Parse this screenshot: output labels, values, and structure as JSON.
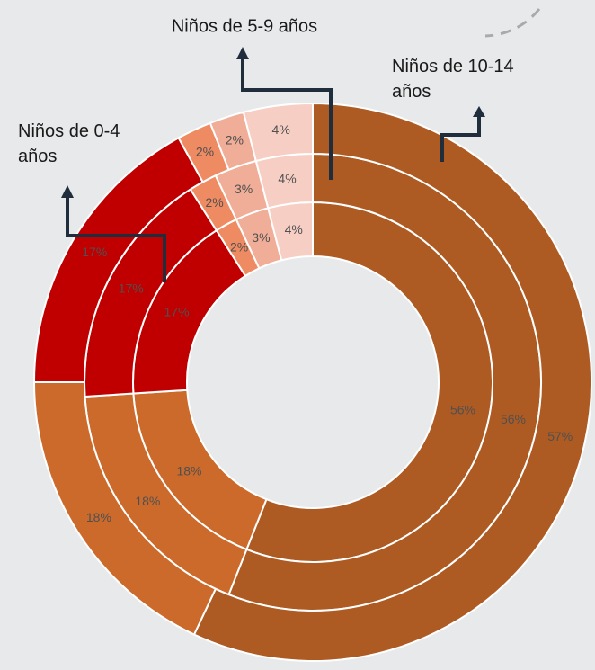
{
  "chart_data": {
    "type": "donut",
    "colors": [
      "#ae5b23",
      "#cc6a2b",
      "#c00000",
      "#ef8b62",
      "#f0ad97",
      "#f6cec3"
    ],
    "series": [
      {
        "name": "Niños de 0-4 años",
        "values": [
          56,
          18,
          17,
          2,
          3,
          4
        ]
      },
      {
        "name": "Niños de 5-9 años",
        "values": [
          56,
          18,
          17,
          2,
          3,
          4
        ]
      },
      {
        "name": "Niños de 10-14 años",
        "values": [
          57,
          18,
          17,
          2,
          2,
          4
        ]
      }
    ]
  }
}
